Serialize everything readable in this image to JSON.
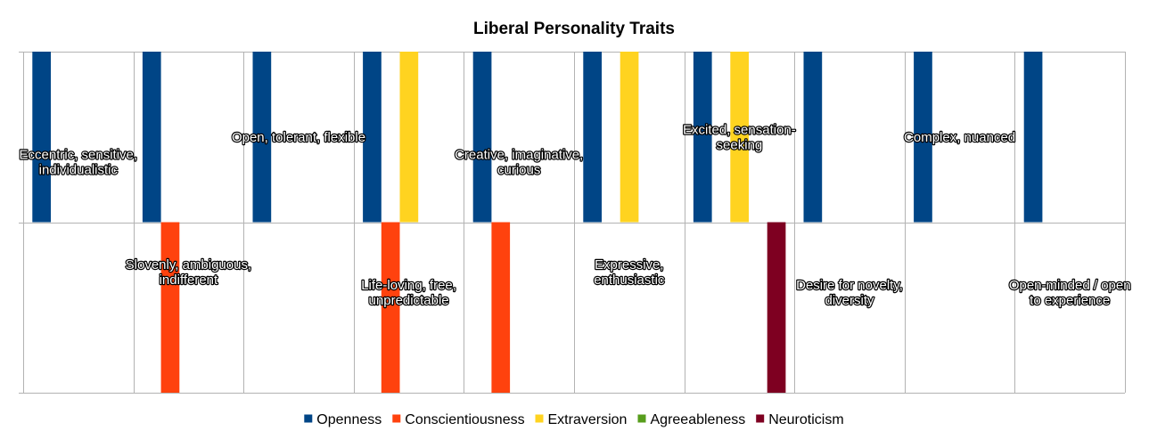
{
  "chart_data": {
    "type": "bar",
    "title": "Liberal Personality Traits",
    "ylim": [
      -1,
      1
    ],
    "grid": true,
    "legend_position": "bottom",
    "categories": [
      "Eccentric, sensitive, individualistic",
      "Slovenly, ambiguous, indifferent",
      "Open, tolerant, flexible",
      "Life-loving, free, unpredictable",
      "Creative, imaginative, curious",
      "Expressive, enthusiastic",
      "Excited, sensation-seeking",
      "Desire for novelty, diversity",
      "Complex, nuanced",
      "Open-minded / open to experience"
    ],
    "series": [
      {
        "name": "Openness",
        "color": "#004586",
        "values": [
          1,
          1,
          1,
          1,
          1,
          1,
          1,
          1,
          1,
          1
        ]
      },
      {
        "name": "Conscientiousness",
        "color": "#ff420e",
        "values": [
          0,
          -1,
          0,
          -1,
          -1,
          0,
          0,
          0,
          0,
          0
        ]
      },
      {
        "name": "Extraversion",
        "color": "#ffd320",
        "values": [
          0,
          0,
          0,
          1,
          0,
          1,
          1,
          0,
          0,
          0
        ]
      },
      {
        "name": "Agreeableness",
        "color": "#579d1c",
        "values": [
          0,
          0,
          0,
          0,
          0,
          0,
          0,
          0,
          0,
          0
        ]
      },
      {
        "name": "Neuroticism",
        "color": "#7e0021",
        "values": [
          0,
          0,
          0,
          0,
          0,
          0,
          -1,
          0,
          0,
          0
        ]
      }
    ],
    "labels": [
      {
        "text": [
          "Eccentric, sensitive,",
          "individualistic"
        ],
        "placement": "upper-low"
      },
      {
        "text": [
          "Slovenly, ambiguous,",
          "indifferent"
        ],
        "placement": "lower-high"
      },
      {
        "text": [
          "Open, tolerant, flexible"
        ],
        "placement": "upper-mid"
      },
      {
        "text": [
          "Life-loving, free,",
          "unpredictable"
        ],
        "placement": "lower-mid"
      },
      {
        "text": [
          "Creative, imaginative,",
          "curious"
        ],
        "placement": "upper-low"
      },
      {
        "text": [
          "Expressive,",
          "enthusiastic"
        ],
        "placement": "lower-high"
      },
      {
        "text": [
          "Excited, sensation-",
          "seeking"
        ],
        "placement": "upper-mid"
      },
      {
        "text": [
          "Desire for novelty,",
          "diversity"
        ],
        "placement": "lower-mid"
      },
      {
        "text": [
          "Complex, nuanced"
        ],
        "placement": "upper-mid"
      },
      {
        "text": [
          "Open-minded / open",
          "to experience"
        ],
        "placement": "lower-mid"
      }
    ]
  }
}
